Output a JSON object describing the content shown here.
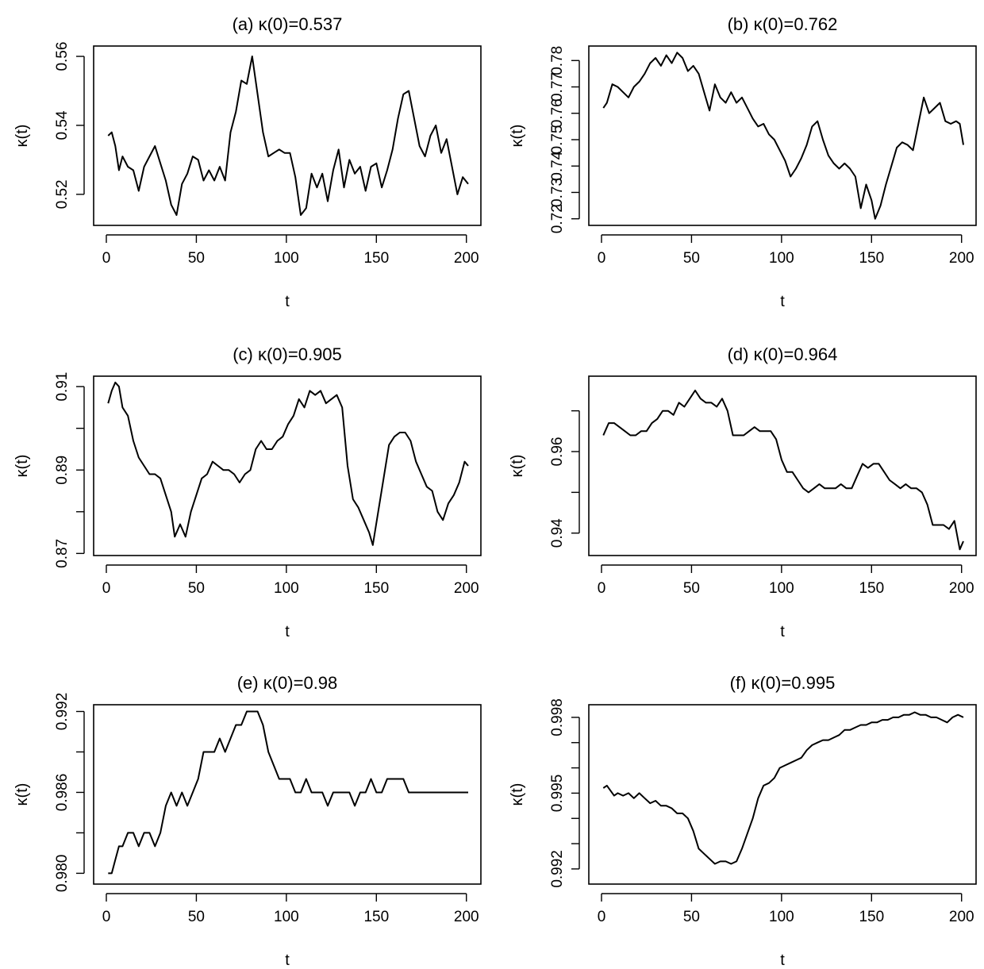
{
  "chart_data": [
    {
      "type": "line",
      "title": "(a) κ(0)=0.537",
      "xlabel": "t",
      "ylabel": "κ(t)",
      "xlim": [
        1,
        201
      ],
      "ylim": [
        0.511,
        0.563
      ],
      "xticks": [
        0,
        50,
        100,
        150,
        200
      ],
      "yticks": [
        0.52,
        0.54,
        0.56
      ],
      "ytick_labels": [
        "0.52",
        "0.54",
        "0.56"
      ],
      "grid": false,
      "series": [
        {
          "x": [
            1,
            3,
            5,
            7,
            9,
            12,
            15,
            18,
            21,
            24,
            27,
            30,
            33,
            36,
            39,
            42,
            45,
            48,
            51,
            54,
            57,
            60,
            63,
            66,
            69,
            72,
            75,
            78,
            81,
            84,
            87,
            90,
            93,
            96,
            99,
            102,
            105,
            108,
            111,
            114,
            117,
            120,
            123,
            126,
            129,
            132,
            135,
            138,
            141,
            144,
            147,
            150,
            153,
            156,
            159,
            162,
            165,
            168,
            171,
            174,
            177,
            180,
            183,
            186,
            189,
            192,
            195,
            198,
            201
          ],
          "y": [
            0.537,
            0.538,
            0.534,
            0.527,
            0.531,
            0.528,
            0.527,
            0.521,
            0.528,
            0.531,
            0.534,
            0.529,
            0.524,
            0.517,
            0.514,
            0.523,
            0.526,
            0.531,
            0.53,
            0.524,
            0.527,
            0.524,
            0.528,
            0.524,
            0.538,
            0.544,
            0.553,
            0.552,
            0.56,
            0.549,
            0.538,
            0.531,
            0.532,
            0.533,
            0.532,
            0.532,
            0.525,
            0.514,
            0.516,
            0.526,
            0.522,
            0.526,
            0.518,
            0.527,
            0.533,
            0.522,
            0.53,
            0.526,
            0.528,
            0.521,
            0.528,
            0.529,
            0.522,
            0.527,
            0.533,
            0.542,
            0.549,
            0.55,
            0.542,
            0.534,
            0.531,
            0.537,
            0.54,
            0.532,
            0.536,
            0.528,
            0.52,
            0.525,
            0.523
          ]
        }
      ]
    },
    {
      "type": "line",
      "title": "(b) κ(0)=0.762",
      "xlabel": "t",
      "ylabel": "κ(t)",
      "xlim": [
        1,
        201
      ],
      "ylim": [
        0.7175,
        0.7855
      ],
      "xticks": [
        0,
        50,
        100,
        150,
        200
      ],
      "yticks": [
        0.72,
        0.73,
        0.74,
        0.75,
        0.76,
        0.77,
        0.78
      ],
      "ytick_labels": [
        "0.72",
        "0.73",
        "0.74",
        "0.75",
        "0.76",
        "0.77",
        "0.78"
      ],
      "grid": false,
      "series": [
        {
          "x": [
            1,
            3,
            6,
            9,
            12,
            15,
            18,
            21,
            24,
            27,
            30,
            33,
            36,
            39,
            42,
            45,
            48,
            51,
            54,
            57,
            60,
            63,
            66,
            69,
            72,
            75,
            78,
            81,
            84,
            87,
            90,
            93,
            96,
            99,
            102,
            105,
            108,
            111,
            114,
            117,
            120,
            123,
            126,
            129,
            132,
            135,
            138,
            141,
            144,
            147,
            150,
            152,
            155,
            158,
            161,
            164,
            167,
            170,
            173,
            176,
            179,
            182,
            185,
            188,
            191,
            194,
            197,
            199,
            201
          ],
          "y": [
            0.762,
            0.764,
            0.771,
            0.77,
            0.768,
            0.766,
            0.77,
            0.772,
            0.775,
            0.779,
            0.781,
            0.778,
            0.782,
            0.779,
            0.783,
            0.781,
            0.776,
            0.778,
            0.775,
            0.768,
            0.761,
            0.771,
            0.766,
            0.764,
            0.768,
            0.764,
            0.766,
            0.762,
            0.758,
            0.755,
            0.756,
            0.752,
            0.75,
            0.746,
            0.742,
            0.736,
            0.739,
            0.743,
            0.748,
            0.755,
            0.757,
            0.75,
            0.744,
            0.741,
            0.739,
            0.741,
            0.739,
            0.736,
            0.724,
            0.733,
            0.727,
            0.72,
            0.725,
            0.733,
            0.74,
            0.747,
            0.749,
            0.748,
            0.746,
            0.756,
            0.766,
            0.76,
            0.762,
            0.764,
            0.757,
            0.756,
            0.757,
            0.756,
            0.748
          ]
        }
      ]
    },
    {
      "type": "line",
      "title": "(c) κ(0)=0.905",
      "xlabel": "t",
      "ylabel": "κ(t)",
      "xlim": [
        1,
        201
      ],
      "ylim": [
        0.8695,
        0.9125
      ],
      "xticks": [
        0,
        50,
        100,
        150,
        200
      ],
      "yticks": [
        0.87,
        0.88,
        0.89,
        0.9,
        0.91
      ],
      "ytick_labels": [
        "0.87",
        "",
        "0.89",
        "",
        "0.91"
      ],
      "grid": false,
      "series": [
        {
          "x": [
            1,
            3,
            5,
            7,
            9,
            12,
            15,
            18,
            21,
            24,
            27,
            30,
            33,
            36,
            38,
            41,
            44,
            47,
            50,
            53,
            56,
            59,
            62,
            65,
            68,
            71,
            74,
            77,
            80,
            83,
            86,
            89,
            92,
            95,
            98,
            101,
            104,
            107,
            110,
            113,
            116,
            119,
            122,
            125,
            128,
            131,
            134,
            137,
            140,
            143,
            146,
            148,
            151,
            154,
            157,
            160,
            163,
            166,
            169,
            172,
            175,
            178,
            181,
            184,
            187,
            190,
            193,
            196,
            199,
            201
          ],
          "y": [
            0.906,
            0.909,
            0.911,
            0.91,
            0.905,
            0.903,
            0.897,
            0.893,
            0.891,
            0.889,
            0.889,
            0.888,
            0.884,
            0.88,
            0.874,
            0.877,
            0.874,
            0.88,
            0.884,
            0.888,
            0.889,
            0.892,
            0.891,
            0.89,
            0.89,
            0.889,
            0.887,
            0.889,
            0.89,
            0.895,
            0.897,
            0.895,
            0.895,
            0.897,
            0.898,
            0.901,
            0.903,
            0.907,
            0.905,
            0.909,
            0.908,
            0.909,
            0.906,
            0.907,
            0.908,
            0.905,
            0.891,
            0.883,
            0.881,
            0.878,
            0.875,
            0.872,
            0.88,
            0.888,
            0.896,
            0.898,
            0.899,
            0.899,
            0.897,
            0.892,
            0.889,
            0.886,
            0.885,
            0.88,
            0.878,
            0.882,
            0.884,
            0.887,
            0.892,
            0.891
          ]
        }
      ]
    },
    {
      "type": "line",
      "title": "(d) κ(0)=0.964",
      "xlabel": "t",
      "ylabel": "κ(t)",
      "xlim": [
        1,
        201
      ],
      "ylim": [
        0.9345,
        0.9785
      ],
      "xticks": [
        0,
        50,
        100,
        150,
        200
      ],
      "yticks": [
        0.94,
        0.95,
        0.96,
        0.97
      ],
      "ytick_labels": [
        "0.94",
        "",
        "0.96",
        ""
      ],
      "grid": false,
      "series": [
        {
          "x": [
            1,
            4,
            7,
            10,
            13,
            16,
            19,
            22,
            25,
            28,
            31,
            34,
            37,
            40,
            43,
            46,
            49,
            52,
            55,
            58,
            61,
            64,
            67,
            70,
            73,
            76,
            79,
            82,
            85,
            88,
            91,
            94,
            97,
            100,
            103,
            106,
            109,
            112,
            115,
            118,
            121,
            124,
            127,
            130,
            133,
            136,
            139,
            142,
            145,
            148,
            151,
            154,
            157,
            160,
            163,
            166,
            169,
            172,
            175,
            178,
            181,
            184,
            187,
            190,
            193,
            196,
            199,
            201
          ],
          "y": [
            0.964,
            0.967,
            0.967,
            0.966,
            0.965,
            0.964,
            0.964,
            0.965,
            0.965,
            0.967,
            0.968,
            0.97,
            0.97,
            0.969,
            0.972,
            0.971,
            0.973,
            0.975,
            0.973,
            0.972,
            0.972,
            0.971,
            0.973,
            0.97,
            0.964,
            0.964,
            0.964,
            0.965,
            0.966,
            0.965,
            0.965,
            0.965,
            0.963,
            0.958,
            0.955,
            0.955,
            0.953,
            0.951,
            0.95,
            0.951,
            0.952,
            0.951,
            0.951,
            0.951,
            0.952,
            0.951,
            0.951,
            0.954,
            0.957,
            0.956,
            0.957,
            0.957,
            0.955,
            0.953,
            0.952,
            0.951,
            0.952,
            0.951,
            0.951,
            0.95,
            0.947,
            0.942,
            0.942,
            0.942,
            0.941,
            0.943,
            0.936,
            0.938
          ]
        }
      ]
    },
    {
      "type": "line",
      "title": "(e) κ(0)=0.98",
      "xlabel": "t",
      "ylabel": "κ(t)",
      "xlim": [
        1,
        201
      ],
      "ylim": [
        0.9792,
        0.9925
      ],
      "xticks": [
        0,
        50,
        100,
        150,
        200
      ],
      "yticks": [
        0.98,
        0.983,
        0.986,
        0.989,
        0.992
      ],
      "ytick_labels": [
        "0.980",
        "",
        "0.986",
        "",
        "0.992"
      ],
      "grid": false,
      "series": [
        {
          "x": [
            1,
            3,
            5,
            7,
            9,
            12,
            15,
            18,
            21,
            24,
            27,
            30,
            33,
            36,
            39,
            42,
            45,
            48,
            51,
            54,
            57,
            60,
            63,
            66,
            69,
            72,
            75,
            78,
            81,
            84,
            87,
            90,
            93,
            96,
            99,
            102,
            105,
            108,
            111,
            114,
            117,
            120,
            123,
            126,
            129,
            132,
            135,
            138,
            141,
            144,
            147,
            150,
            153,
            156,
            159,
            162,
            165,
            168,
            171,
            174,
            177,
            180,
            183,
            186,
            189,
            192,
            195,
            198,
            201
          ],
          "y": [
            0.98,
            0.98,
            0.981,
            0.982,
            0.982,
            0.983,
            0.983,
            0.982,
            0.983,
            0.983,
            0.982,
            0.983,
            0.985,
            0.986,
            0.985,
            0.986,
            0.985,
            0.986,
            0.987,
            0.989,
            0.989,
            0.989,
            0.99,
            0.989,
            0.99,
            0.991,
            0.991,
            0.992,
            0.992,
            0.992,
            0.991,
            0.989,
            0.988,
            0.987,
            0.987,
            0.987,
            0.986,
            0.986,
            0.987,
            0.986,
            0.986,
            0.986,
            0.985,
            0.986,
            0.986,
            0.986,
            0.986,
            0.985,
            0.986,
            0.986,
            0.987,
            0.986,
            0.986,
            0.987,
            0.987,
            0.987,
            0.987,
            0.986,
            0.986,
            0.986,
            0.986,
            0.986,
            0.986,
            0.986,
            0.986,
            0.986,
            0.986,
            0.986,
            0.986
          ]
        }
      ]
    },
    {
      "type": "line",
      "title": "(f) κ(0)=0.995",
      "xlabel": "t",
      "ylabel": "κ(t)",
      "xlim": [
        1,
        201
      ],
      "ylim": [
        0.9914,
        0.9985
      ],
      "xticks": [
        0,
        50,
        100,
        150,
        200
      ],
      "yticks": [
        0.992,
        0.993,
        0.994,
        0.995,
        0.996,
        0.997,
        0.998
      ],
      "ytick_labels": [
        "0.992",
        "",
        "",
        "0.995",
        "",
        "",
        "0.998"
      ],
      "grid": false,
      "series": [
        {
          "x": [
            1,
            3,
            5,
            7,
            9,
            12,
            15,
            18,
            21,
            24,
            27,
            30,
            33,
            36,
            39,
            42,
            45,
            48,
            51,
            54,
            57,
            60,
            63,
            66,
            69,
            72,
            75,
            78,
            81,
            84,
            87,
            90,
            93,
            96,
            99,
            102,
            105,
            108,
            111,
            114,
            117,
            120,
            123,
            126,
            129,
            132,
            135,
            138,
            141,
            144,
            147,
            150,
            153,
            156,
            159,
            162,
            165,
            168,
            171,
            174,
            177,
            180,
            183,
            186,
            189,
            192,
            195,
            198,
            201
          ],
          "y": [
            0.9952,
            0.9953,
            0.9951,
            0.9949,
            0.995,
            0.9949,
            0.995,
            0.9948,
            0.995,
            0.9948,
            0.9946,
            0.9947,
            0.9945,
            0.9945,
            0.9944,
            0.9942,
            0.9942,
            0.994,
            0.9935,
            0.9928,
            0.9926,
            0.9924,
            0.9922,
            0.9923,
            0.9923,
            0.9922,
            0.9923,
            0.9928,
            0.9934,
            0.994,
            0.9948,
            0.9953,
            0.9954,
            0.9956,
            0.996,
            0.9961,
            0.9962,
            0.9963,
            0.9964,
            0.9967,
            0.9969,
            0.997,
            0.9971,
            0.9971,
            0.9972,
            0.9973,
            0.9975,
            0.9975,
            0.9976,
            0.9977,
            0.9977,
            0.9978,
            0.9978,
            0.9979,
            0.9979,
            0.998,
            0.998,
            0.9981,
            0.9981,
            0.9982,
            0.9981,
            0.9981,
            0.998,
            0.998,
            0.9979,
            0.9978,
            0.998,
            0.9981,
            0.998
          ]
        }
      ]
    }
  ]
}
